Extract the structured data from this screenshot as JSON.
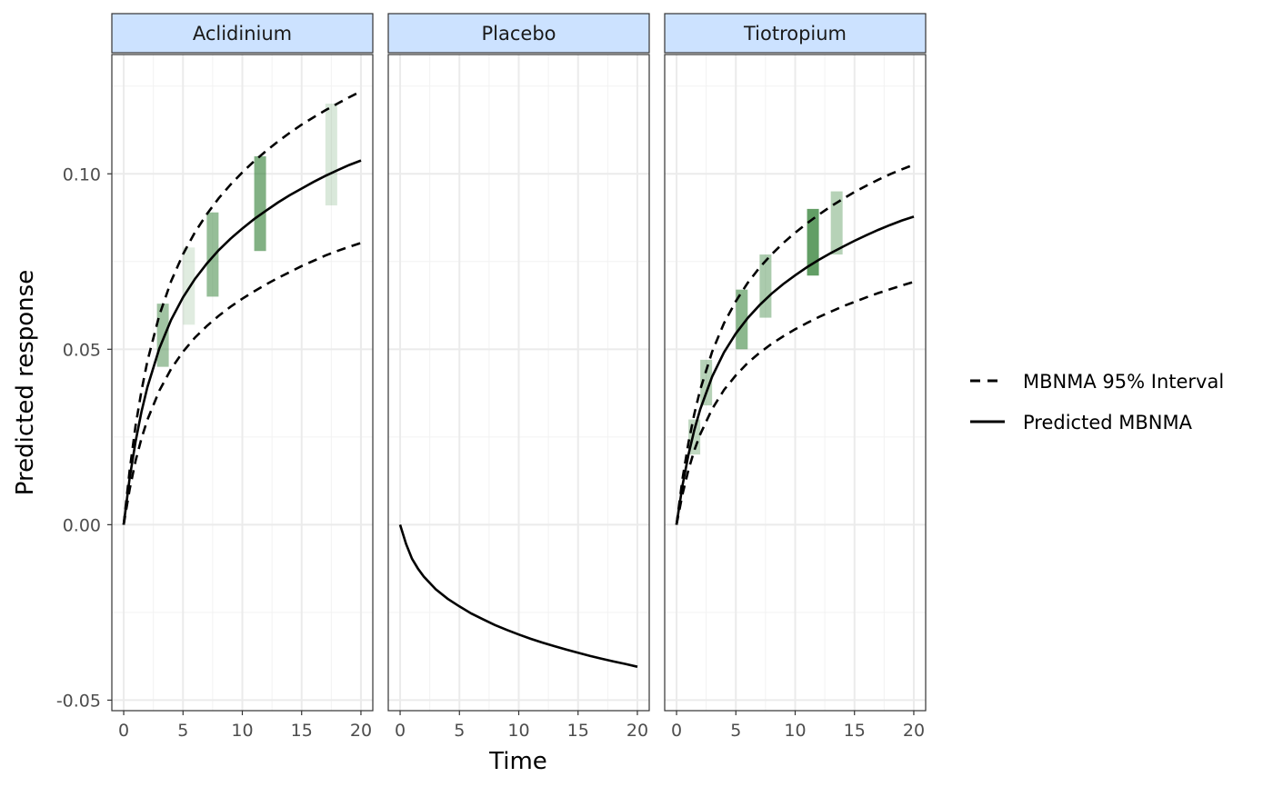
{
  "chart_data": {
    "type": "line",
    "xlabel": "Time",
    "ylabel": "Predicted response",
    "xlim": [
      -1,
      21
    ],
    "ylim": [
      -0.053,
      0.134
    ],
    "x_ticks": [
      0,
      5,
      10,
      15,
      20
    ],
    "x_tick_labels": [
      "0",
      "5",
      "10",
      "15",
      "20"
    ],
    "y_ticks": [
      -0.05,
      0.0,
      0.05,
      0.1
    ],
    "y_tick_labels": [
      "-0.05",
      "0.00",
      "0.05",
      "0.10"
    ],
    "grid": true,
    "legend_position": "right",
    "legend": [
      {
        "label": "MBNMA 95% Interval",
        "style": "dashed"
      },
      {
        "label": "Predicted MBNMA",
        "style": "solid"
      }
    ],
    "band_color": "#2e7d32",
    "panels": [
      {
        "facet": "Aclidinium",
        "curve": {
          "x": [
            0,
            0.5,
            1,
            1.5,
            2,
            3,
            4,
            5,
            6,
            7,
            8,
            9,
            10,
            11,
            12,
            13,
            14,
            15,
            16,
            17,
            18,
            19,
            20
          ],
          "predicted": [
            0.0,
            0.0133,
            0.0237,
            0.0322,
            0.0392,
            0.0502,
            0.0584,
            0.0648,
            0.07,
            0.0744,
            0.0782,
            0.0815,
            0.0844,
            0.0871,
            0.0895,
            0.0918,
            0.0939,
            0.0958,
            0.0977,
            0.0994,
            0.101,
            0.1025,
            0.1038
          ],
          "lower": [
            0.0,
            0.0101,
            0.0182,
            0.0246,
            0.0299,
            0.0382,
            0.0444,
            0.0493,
            0.0533,
            0.0566,
            0.0595,
            0.0621,
            0.0644,
            0.0665,
            0.0685,
            0.0703,
            0.072,
            0.0737,
            0.0752,
            0.0767,
            0.078,
            0.0792,
            0.0803
          ],
          "upper": [
            0.0,
            0.0155,
            0.0282,
            0.0382,
            0.0466,
            0.0597,
            0.0694,
            0.0771,
            0.0833,
            0.0885,
            0.093,
            0.0969,
            0.1004,
            0.1036,
            0.1065,
            0.1092,
            0.1117,
            0.114,
            0.1161,
            0.1181,
            0.12,
            0.1218,
            0.1235
          ]
        },
        "observed_bands": [
          {
            "time": 3.3,
            "low": 0.045,
            "high": 0.063,
            "opacity": 0.45
          },
          {
            "time": 5.5,
            "low": 0.057,
            "high": 0.079,
            "opacity": 0.15
          },
          {
            "time": 7.5,
            "low": 0.065,
            "high": 0.089,
            "opacity": 0.5
          },
          {
            "time": 11.5,
            "low": 0.078,
            "high": 0.105,
            "opacity": 0.6
          },
          {
            "time": 17.5,
            "low": 0.091,
            "high": 0.12,
            "opacity": 0.18
          }
        ]
      },
      {
        "facet": "Placebo",
        "curve": {
          "x": [
            0,
            0.5,
            1,
            1.5,
            2,
            3,
            4,
            5,
            6,
            7,
            8,
            9,
            10,
            11,
            12,
            13,
            14,
            15,
            16,
            17,
            18,
            19,
            20
          ],
          "predicted": [
            0.0,
            -0.0055,
            -0.0097,
            -0.0125,
            -0.0148,
            -0.0184,
            -0.0211,
            -0.0233,
            -0.0253,
            -0.027,
            -0.0286,
            -0.03,
            -0.0313,
            -0.0325,
            -0.0336,
            -0.0346,
            -0.0356,
            -0.0365,
            -0.0374,
            -0.0382,
            -0.039,
            -0.0397,
            -0.0405
          ],
          "lower": [],
          "upper": []
        },
        "observed_bands": []
      },
      {
        "facet": "Tiotropium",
        "curve": {
          "x": [
            0,
            0.5,
            1,
            1.5,
            2,
            3,
            4,
            5,
            6,
            7,
            8,
            9,
            10,
            11,
            12,
            13,
            14,
            15,
            16,
            17,
            18,
            19,
            20
          ],
          "predicted": [
            0.0,
            0.0112,
            0.0199,
            0.027,
            0.0329,
            0.0422,
            0.0491,
            0.0545,
            0.0589,
            0.0626,
            0.0658,
            0.0686,
            0.0711,
            0.0734,
            0.0755,
            0.0774,
            0.0792,
            0.0809,
            0.0825,
            0.084,
            0.0854,
            0.0867,
            0.0878
          ],
          "lower": [
            0.0,
            0.0087,
            0.0156,
            0.0212,
            0.0258,
            0.033,
            0.0384,
            0.0426,
            0.0461,
            0.049,
            0.0515,
            0.0537,
            0.0557,
            0.0575,
            0.0592,
            0.0607,
            0.0622,
            0.0635,
            0.0648,
            0.066,
            0.0671,
            0.0682,
            0.0692
          ],
          "upper": [
            0.0,
            0.0131,
            0.0233,
            0.0316,
            0.0385,
            0.0493,
            0.0574,
            0.0637,
            0.0689,
            0.0733,
            0.077,
            0.0803,
            0.0832,
            0.0859,
            0.0884,
            0.0907,
            0.0928,
            0.0948,
            0.0966,
            0.0983,
            0.0999,
            0.1013,
            0.1026
          ]
        },
        "observed_bands": [
          {
            "time": 1.5,
            "low": 0.02,
            "high": 0.03,
            "opacity": 0.3
          },
          {
            "time": 2.5,
            "low": 0.034,
            "high": 0.047,
            "opacity": 0.35
          },
          {
            "time": 5.5,
            "low": 0.05,
            "high": 0.067,
            "opacity": 0.55
          },
          {
            "time": 7.5,
            "low": 0.059,
            "high": 0.077,
            "opacity": 0.4
          },
          {
            "time": 11.5,
            "low": 0.071,
            "high": 0.09,
            "opacity": 0.75
          },
          {
            "time": 13.5,
            "low": 0.077,
            "high": 0.095,
            "opacity": 0.35
          }
        ]
      }
    ]
  }
}
